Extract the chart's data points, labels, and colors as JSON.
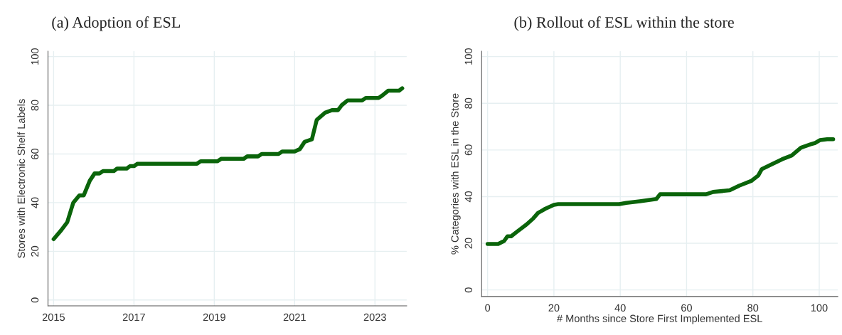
{
  "chart_data": [
    {
      "type": "line",
      "title": "(a) Adoption of ESL",
      "ylabel": "Stores with Electronic Shelf Labels",
      "x": [
        2015.0,
        2015.19,
        2015.34,
        2015.49,
        2015.64,
        2015.75,
        2015.9,
        2016.02,
        2016.14,
        2016.23,
        2016.5,
        2016.58,
        2016.82,
        2016.9,
        2017.0,
        2017.09,
        2018.57,
        2018.66,
        2019.08,
        2019.17,
        2019.73,
        2019.82,
        2020.09,
        2020.18,
        2020.6,
        2020.69,
        2021.0,
        2021.13,
        2021.25,
        2021.43,
        2021.55,
        2021.76,
        2021.93,
        2022.08,
        2022.17,
        2022.32,
        2022.68,
        2022.77,
        2023.09,
        2023.18,
        2023.33,
        2023.6,
        2023.68
      ],
      "series": [
        {
          "color": "#0a640a",
          "values": [
            25,
            28.7,
            32,
            40,
            43,
            43,
            49,
            52,
            52,
            53,
            53,
            54,
            54,
            55,
            55,
            56,
            56,
            57,
            57,
            58,
            58,
            59,
            59,
            60,
            60,
            61,
            61,
            62,
            65,
            66,
            74,
            77,
            78,
            78,
            80,
            82,
            82,
            83,
            83,
            84,
            86,
            86,
            87
          ]
        }
      ],
      "xlim": [
        2014.86,
        2023.79
      ],
      "xticks": [
        2015,
        2017,
        2019,
        2021,
        2023
      ],
      "ylim": [
        -2.4,
        102.2
      ],
      "yticks": [
        0,
        20,
        40,
        60,
        80,
        100
      ],
      "grid": true,
      "line_style": "solid",
      "marker": "none"
    },
    {
      "type": "line",
      "title": "(b) Rollout of ESL within the store",
      "xlabel": "# Months since Store First Implemented ESL",
      "ylabel": "% Categories with ESL in the Store",
      "x": [
        0,
        3.2,
        5,
        6,
        7.1,
        8.9,
        11.7,
        13.8,
        15.2,
        17.4,
        20,
        21.3,
        39.7,
        41.8,
        45.9,
        50.9,
        52,
        65.9,
        68,
        73,
        75.9,
        79.5,
        81.6,
        82.7,
        85.9,
        88.8,
        91.7,
        94.5,
        97.4,
        98.8,
        100.2,
        102.4,
        104.2
      ],
      "series": [
        {
          "color": "#0a640a",
          "values": [
            19.7,
            19.7,
            21,
            23,
            23,
            25,
            28,
            30.7,
            33,
            34.8,
            36.5,
            36.8,
            36.8,
            37.3,
            38,
            39,
            41,
            41,
            42,
            42.7,
            44.7,
            46.7,
            49,
            51.8,
            54,
            56,
            57.6,
            61,
            62.4,
            63,
            64.2,
            64.6,
            64.6
          ]
        }
      ],
      "xlim": [
        -1.8,
        105.6
      ],
      "xticks": [
        0,
        20,
        40,
        60,
        80,
        100
      ],
      "ylim": [
        -2.8,
        102.3
      ],
      "yticks": [
        0,
        20,
        40,
        60,
        80,
        100
      ],
      "grid": true,
      "line_style": "solid",
      "marker": "none"
    }
  ]
}
